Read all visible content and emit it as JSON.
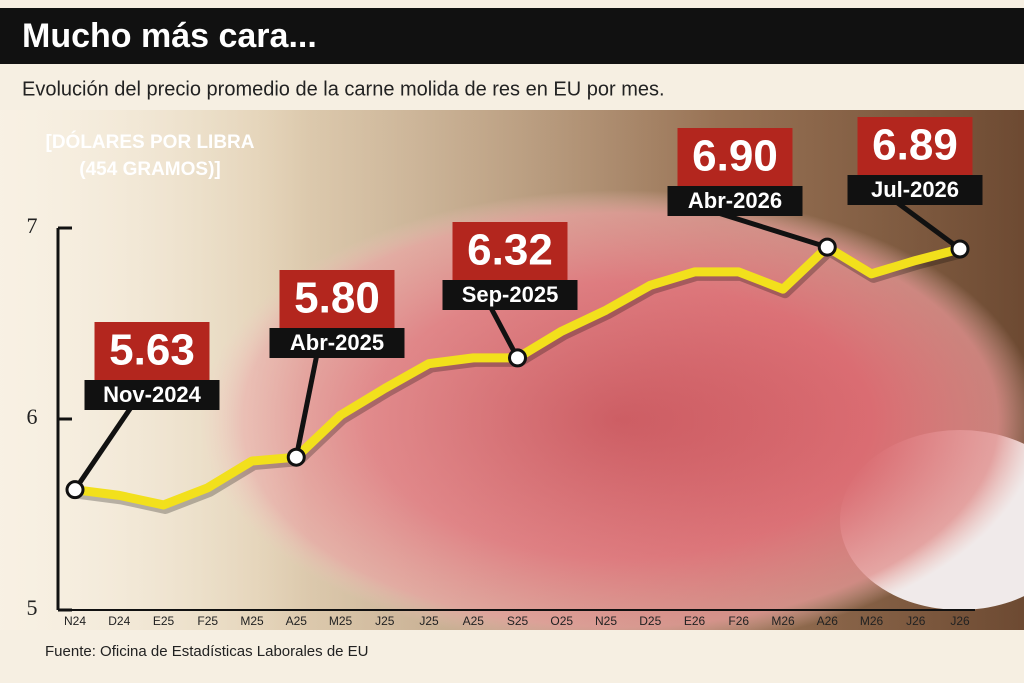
{
  "chart_data": {
    "type": "line",
    "title": "Mucho más cara...",
    "subtitle": "Evolución del precio promedio de la carne molida de res en EU por mes.",
    "y_label": [
      "[DÓLARES POR LIBRA",
      "(454 GRAMOS)]"
    ],
    "source": "Fuente: Oficina de Estadísticas Laborales de EU",
    "categories": [
      "N24",
      "D24",
      "E25",
      "F25",
      "M25",
      "A25",
      "M25",
      "J25",
      "J25",
      "A25",
      "S25",
      "O25",
      "N25",
      "D25",
      "E26",
      "F26",
      "M26",
      "A26",
      "M26",
      "J26",
      "J26"
    ],
    "values": [
      5.63,
      5.6,
      5.55,
      5.64,
      5.78,
      5.8,
      6.02,
      6.16,
      6.29,
      6.32,
      6.32,
      6.46,
      6.57,
      6.7,
      6.77,
      6.77,
      6.68,
      6.9,
      6.76,
      6.83,
      6.89
    ],
    "value_labels": [
      "5.63",
      null,
      null,
      null,
      null,
      "5.80",
      null,
      null,
      null,
      null,
      "6.32",
      null,
      null,
      null,
      null,
      null,
      null,
      "6.90",
      null,
      null,
      "6.89"
    ],
    "date_labels": [
      "Nov-2024",
      null,
      null,
      null,
      null,
      "Abr-2025",
      null,
      null,
      null,
      null,
      "Sep-2025",
      null,
      null,
      null,
      null,
      null,
      null,
      "Abr-2026",
      null,
      null,
      "Jul-2026"
    ],
    "color": "#f2e01c",
    "ylim": [
      5,
      7
    ],
    "yticks": [
      5,
      6,
      7
    ]
  }
}
